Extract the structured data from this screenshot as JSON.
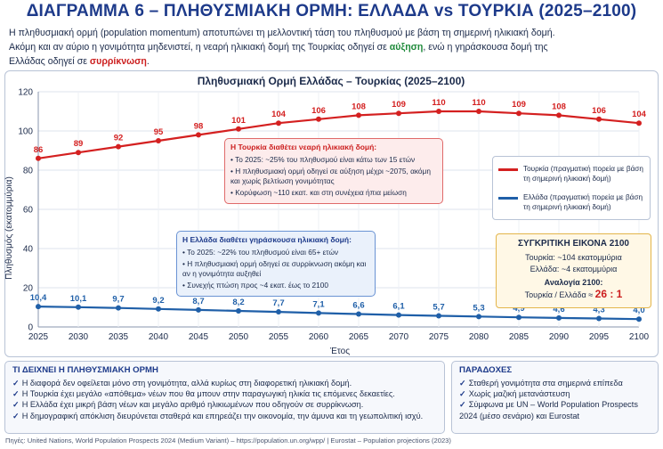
{
  "title": "ΔΙΑΓΡΑΜΜΑ 6 – ΠΛΗΘΥΣΜΙΑΚΗ ΟΡΜΗ: ΕΛΛΑΔΑ vs ΤΟΥΡΚΙΑ (2025–2100)",
  "intro": {
    "line1": "Η πληθυσμιακή ορμή (population momentum) αποτυπώνει τη μελλοντική τάση του πληθυσμού με βάση τη σημερινή ηλικιακή δομή.",
    "line2_a": "Ακόμη και αν αύριο η γονιμότητα μηδενιστεί, η νεαρή ηλικιακή δομή της Τουρκίας οδηγεί σε ",
    "line2_b": "αύξηση",
    "line2_c": ", ενώ η γηράσκουσα δομή της",
    "line3_a": "Ελλάδας οδηγεί σε ",
    "line3_b": "συρρίκνωση",
    "line3_c": "."
  },
  "annotation_turkey": {
    "title": "Η Τουρκία διαθέτει νεαρή ηλικιακή δομή:",
    "items": [
      "Το 2025: ~25% του πληθυσμού είναι κάτω των 15 ετών",
      "Η πληθυσμιακή ορμή οδηγεί σε αύξηση μέχρι ~2075, ακόμη και χωρίς βελτίωση γονιμότητας",
      "Κορύφωση ~110 εκατ. και στη συνέχεια ήπια μείωση"
    ]
  },
  "annotation_greece": {
    "title": "Η Ελλάδα διαθέτει γηράσκουσα ηλικιακή δομή:",
    "items": [
      "Το 2025: ~22% του πληθυσμού είναι 65+ ετών",
      "Η πληθυσμιακή ορμή οδηγεί σε συρρίκνωση ακόμη και αν η γονιμότητα αυξηθεί",
      "Συνεχής πτώση προς ~4 εκατ. έως το 2100"
    ]
  },
  "legend": {
    "turkey": "Τουρκία (πραγματική πορεία με βάση τη σημερινή ηλικιακή δομή)",
    "greece": "Ελλάδα (πραγματική πορεία με βάση τη σημερινή ηλικιακή δομή)"
  },
  "comparison": {
    "title": "ΣΥΓΚΡΙΤΙΚΗ ΕΙΚΟΝΑ 2100",
    "turkey": "Τουρκία: ~104 εκατομμύρια",
    "greece": "Ελλάδα: ~4 εκατομμύρια",
    "ratio_title": "Αναλογία 2100:",
    "ratio_label": "Τουρκία / Ελλάδα ≈ ",
    "ratio_value": "26 : 1"
  },
  "bottom_left": {
    "title": "ΤΙ ΔΕΙΧΝΕΙ Η ΠΛΗΘΥΣΜΙΑΚΗ ΟΡΜΗ",
    "items": [
      "Η διαφορά δεν οφείλεται μόνο στη γονιμότητα, αλλά κυρίως στη διαφορετική ηλικιακή δομή.",
      "Η Τουρκία έχει μεγάλο «απόθεμα» νέων που θα μπουν στην παραγωγική ηλικία τις επόμενες δεκαετίες.",
      "Η Ελλάδα έχει μικρή βάση νέων και μεγάλο αριθμό ηλικιωμένων που οδηγούν σε συρρίκνωση.",
      "Η δημογραφική απόκλιση διευρύνεται σταθερά και επηρεάζει την οικονομία, την άμυνα και τη γεωπολιτική ισχύ."
    ]
  },
  "bottom_right": {
    "title": "ΠΑΡΑΔΟΧΕΣ",
    "items": [
      "Σταθερή γονιμότητα στα σημερινά επίπεδα",
      "Χωρίς μαζική μετανάστευση",
      "Σύμφωνα με UN – World Population Prospects 2024 (μέσο σενάριο) και Eurostat"
    ]
  },
  "source": "Πηγές: United Nations, World Population Prospects 2024 (Medium Variant) – https://population.un.org/wpp/ | Eurostat – Population projections (2023)",
  "colors": {
    "turkey": "#d42020",
    "greece": "#1f5fa8",
    "title": "#1d3a8a"
  },
  "chart_data": {
    "type": "line",
    "title": "Πληθυσμιακή Ορμή Ελλάδας – Τουρκίας (2025–2100)",
    "xlabel": "Έτος",
    "ylabel": "Πληθυσμός (εκατομμύρια)",
    "x": [
      2025,
      2030,
      2035,
      2040,
      2045,
      2050,
      2055,
      2060,
      2065,
      2070,
      2075,
      2080,
      2085,
      2090,
      2095,
      2100
    ],
    "ylim": [
      0,
      120
    ],
    "yticks": [
      0,
      20,
      40,
      60,
      80,
      100,
      120
    ],
    "grid": true,
    "series": [
      {
        "name": "Τουρκία",
        "values": [
          86,
          89,
          92,
          95,
          98,
          101,
          104,
          106,
          108,
          109,
          110,
          110,
          109,
          108,
          106,
          104
        ],
        "labels": [
          "86",
          "89",
          "92",
          "95",
          "98",
          "101",
          "104",
          "106",
          "108",
          "109",
          "110",
          "110",
          "109",
          "108",
          "106",
          "104"
        ]
      },
      {
        "name": "Ελλάδα",
        "values": [
          10.4,
          10.1,
          9.7,
          9.2,
          8.7,
          8.2,
          7.7,
          7.1,
          6.6,
          6.1,
          5.7,
          5.3,
          4.9,
          4.6,
          4.3,
          4.0
        ],
        "labels": [
          "10,4",
          "10,1",
          "9,7",
          "9,2",
          "8,7",
          "8,2",
          "7,7",
          "7,1",
          "6,6",
          "6,1",
          "5,7",
          "5,3",
          "4,9",
          "4,6",
          "4,3",
          "4,0"
        ]
      }
    ]
  }
}
